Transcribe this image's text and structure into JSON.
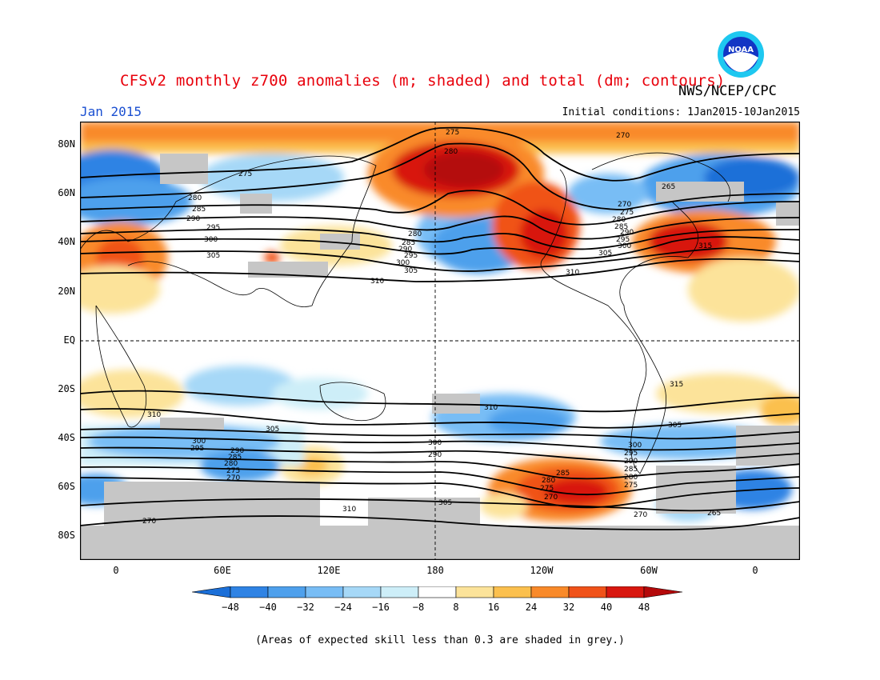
{
  "title": "CFSv2 monthly z700 anomalies (m; shaded) and total (dm; contours)",
  "agency": "NWS/NCEP/CPC",
  "logo_text": "NOAA",
  "period": "Jan 2015",
  "initial_conditions": "Initial conditions: 1Jan2015-10Jan2015",
  "lat_labels": [
    "80N",
    "60N",
    "40N",
    "20N",
    "EQ",
    "20S",
    "40S",
    "60S",
    "80S"
  ],
  "lon_labels": [
    "0",
    "60E",
    "120E",
    "180",
    "120W",
    "60W",
    "0"
  ],
  "colorbar": {
    "ticks": [
      "-48",
      "-40",
      "-32",
      "-24",
      "-16",
      "-8",
      "8",
      "16",
      "24",
      "32",
      "40",
      "48"
    ],
    "colors": [
      "#1b6fd8",
      "#2f83e4",
      "#4ea0ec",
      "#78bdf5",
      "#a6d8f7",
      "#cdeef8",
      "#ffffff",
      "#fce39a",
      "#fbc04e",
      "#f98a2a",
      "#f05219",
      "#d8170f",
      "#b4090a"
    ]
  },
  "contour_labels": [
    "275",
    "280",
    "275",
    "280",
    "285",
    "290",
    "295",
    "300",
    "305",
    "310",
    "280",
    "285",
    "290",
    "295",
    "300",
    "305",
    "310",
    "270",
    "265",
    "270",
    "275",
    "280",
    "285",
    "290",
    "295",
    "300",
    "305",
    "310",
    "315",
    "315",
    "310",
    "305",
    "300",
    "295",
    "290",
    "285",
    "280",
    "275",
    "270",
    "270",
    "310",
    "305",
    "300",
    "290",
    "285",
    "280",
    "275",
    "270",
    "305",
    "300",
    "295",
    "290",
    "285",
    "280",
    "275",
    "265",
    "270"
  ],
  "footnote": "(Areas of expected skill less than 0.3 are shaded in grey.)"
}
